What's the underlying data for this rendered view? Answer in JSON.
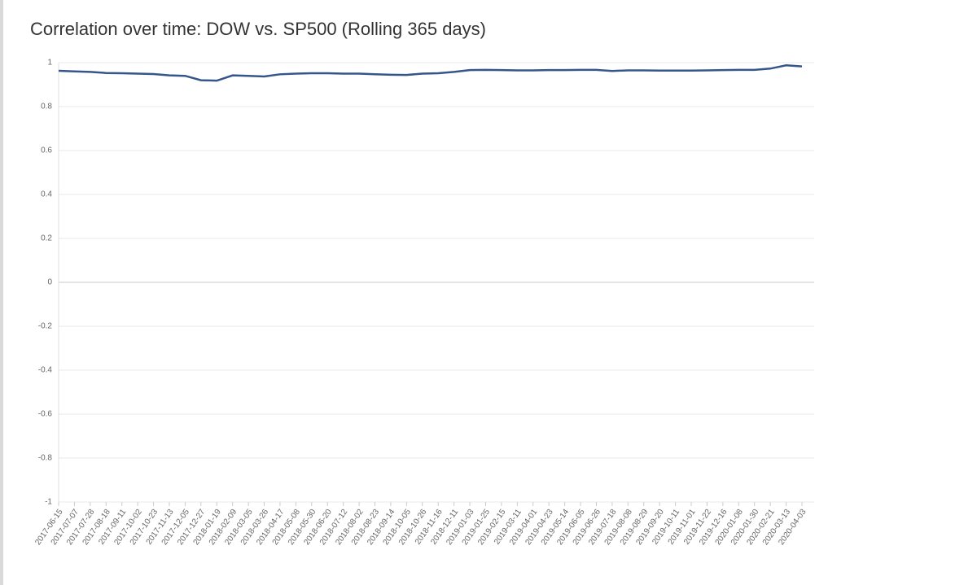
{
  "chart_data": {
    "type": "line",
    "title": "Correlation over time: DOW vs. SP500 (Rolling 365 days)",
    "categories": [
      "2017-06-15",
      "2017-07-07",
      "2017-07-28",
      "2017-08-18",
      "2017-09-11",
      "2017-10-02",
      "2017-10-23",
      "2017-11-13",
      "2017-12-05",
      "2017-12-27",
      "2018-01-19",
      "2018-02-09",
      "2018-03-05",
      "2018-03-26",
      "2018-04-17",
      "2018-05-08",
      "2018-05-30",
      "2018-06-20",
      "2018-07-12",
      "2018-08-02",
      "2018-08-23",
      "2018-09-14",
      "2018-10-05",
      "2018-10-26",
      "2018-11-16",
      "2018-12-11",
      "2019-01-03",
      "2019-01-25",
      "2019-02-15",
      "2019-03-11",
      "2019-04-01",
      "2019-04-23",
      "2019-05-14",
      "2019-06-05",
      "2019-06-26",
      "2019-07-18",
      "2019-08-08",
      "2019-08-29",
      "2019-09-20",
      "2019-10-11",
      "2019-11-01",
      "2019-11-22",
      "2019-12-16",
      "2020-01-08",
      "2020-01-30",
      "2020-02-21",
      "2020-03-13",
      "2020-04-03"
    ],
    "values": [
      0.963,
      0.96,
      0.958,
      0.953,
      0.952,
      0.95,
      0.948,
      0.942,
      0.94,
      0.92,
      0.918,
      0.942,
      0.94,
      0.937,
      0.947,
      0.95,
      0.952,
      0.952,
      0.95,
      0.95,
      0.947,
      0.945,
      0.944,
      0.95,
      0.952,
      0.958,
      0.966,
      0.967,
      0.966,
      0.965,
      0.965,
      0.966,
      0.966,
      0.967,
      0.967,
      0.962,
      0.965,
      0.965,
      0.964,
      0.964,
      0.964,
      0.965,
      0.966,
      0.967,
      0.967,
      0.973,
      0.988,
      0.983
    ],
    "color": "#34568b",
    "ylim": [
      -1,
      1
    ],
    "yticks": [
      -1,
      -0.8,
      -0.6,
      -0.4,
      -0.2,
      0,
      0.2,
      0.4,
      0.6,
      0.8,
      1
    ],
    "grid": true
  }
}
